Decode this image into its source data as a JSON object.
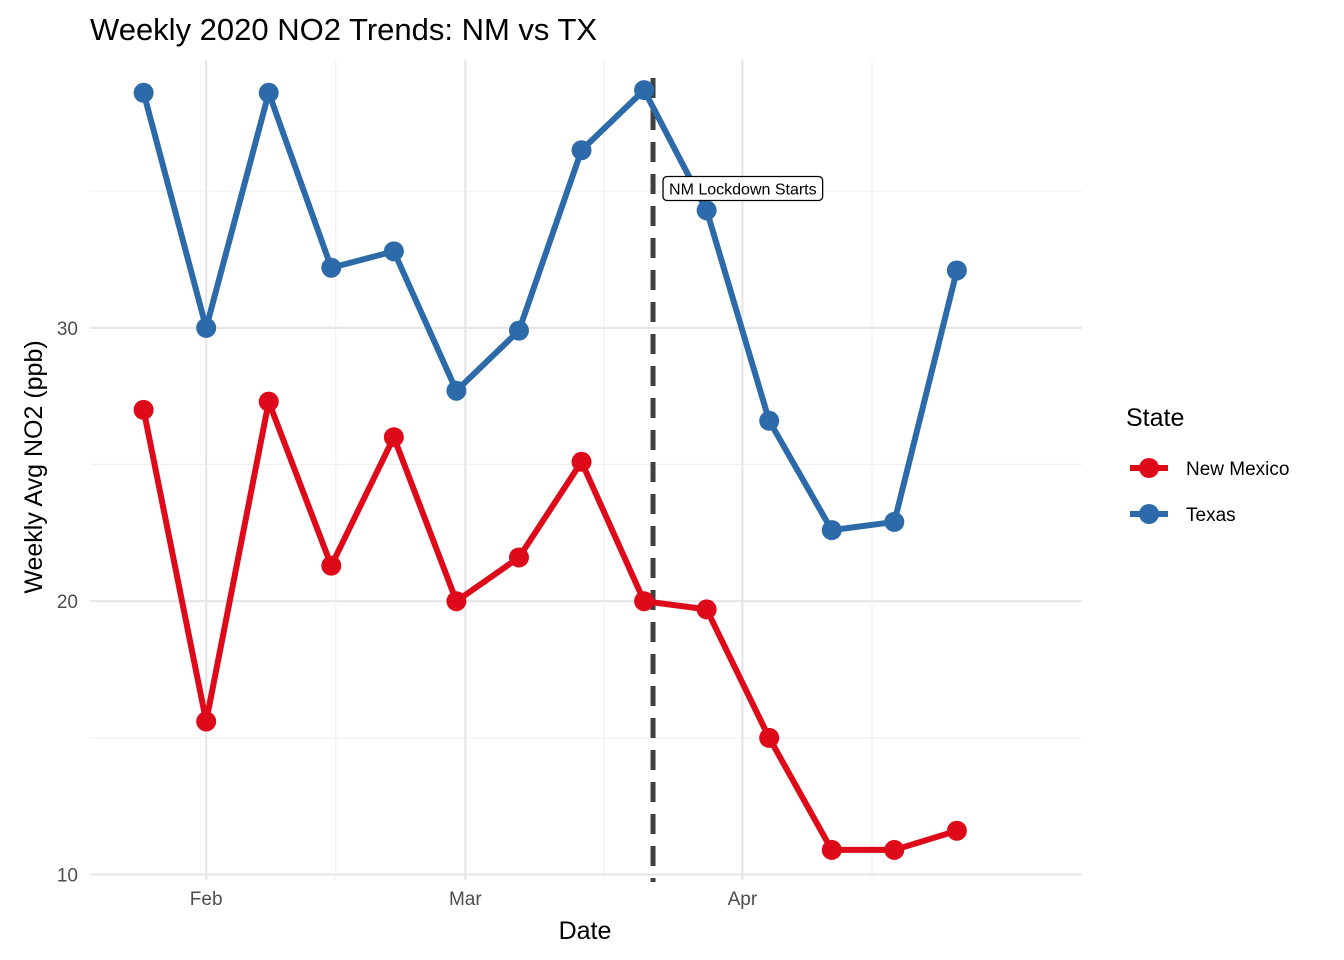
{
  "chart_data": {
    "type": "line",
    "title": "Weekly 2020 NO2 Trends: NM vs TX",
    "xlabel": "Date",
    "ylabel": "Weekly Avg NO2 (ppb)",
    "x_ticks": [
      "2020-02-01",
      "2020-03-01",
      "2020-04-01"
    ],
    "x_tick_labels": [
      "Feb",
      "Mar",
      "Apr"
    ],
    "xlim": [
      "2020-01-19",
      "2020-05-09"
    ],
    "y_ticks": [
      10,
      20,
      30
    ],
    "y_tick_labels": [
      "10",
      "20",
      "30"
    ],
    "ylim": [
      9.8,
      39.8
    ],
    "grid": true,
    "legend": {
      "title": "State",
      "position": "right"
    },
    "x": [
      "2020-01-25",
      "2020-02-01",
      "2020-02-08",
      "2020-02-15",
      "2020-02-22",
      "2020-02-29",
      "2020-03-07",
      "2020-03-14",
      "2020-03-21",
      "2020-03-28",
      "2020-04-04",
      "2020-04-11",
      "2020-04-18",
      "2020-04-25"
    ],
    "series": [
      {
        "name": "New Mexico",
        "color": "#de0a1a",
        "values": [
          27.0,
          15.6,
          27.3,
          21.3,
          26.0,
          20.0,
          21.6,
          25.1,
          20.0,
          19.7,
          15.0,
          10.9,
          10.9,
          11.6
        ]
      },
      {
        "name": "Texas",
        "color": "#2c6aaa",
        "values": [
          38.6,
          30.0,
          38.6,
          32.2,
          32.8,
          27.7,
          29.9,
          36.5,
          38.7,
          34.3,
          26.6,
          22.6,
          22.9,
          32.1
        ]
      }
    ],
    "annotations": [
      {
        "type": "vline",
        "x": "2020-03-22",
        "style": "dashed",
        "color": "#404040"
      },
      {
        "type": "label",
        "x": "2020-03-22",
        "y": 35.1,
        "text": "NM Lockdown Starts"
      }
    ]
  }
}
